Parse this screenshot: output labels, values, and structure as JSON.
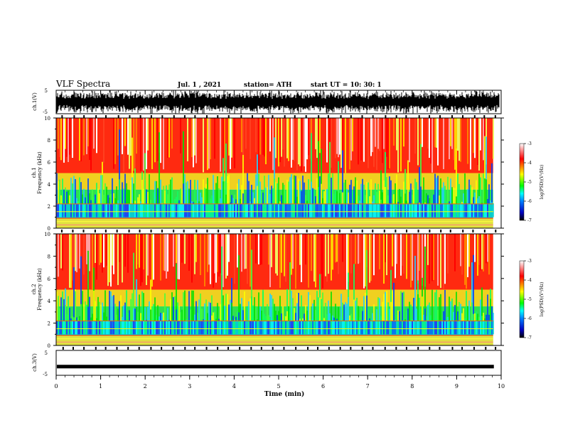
{
  "header": {
    "title": "VLF Spectra",
    "date": "Jul. 1 , 2021",
    "station": "station= ATH",
    "start": "start UT = 10: 30: 1"
  },
  "colors": {
    "spectrogram_low": "#1030c0",
    "spectrogram_mid": "#10e060",
    "spectrogram_high": "#ff2010",
    "colorbar_stops": [
      "#000000",
      "#0000c0",
      "#0080ff",
      "#00ffff",
      "#00ff00",
      "#ffff00",
      "#ff8000",
      "#ff0000",
      "#ffffff"
    ]
  },
  "chart_data": [
    {
      "type": "line",
      "id": "ch1-waveform",
      "ylabel": "ch.1(V)",
      "yticks": [
        "5",
        "-5"
      ],
      "ylim": [
        -5,
        5
      ],
      "xlim": [
        0,
        10
      ]
    },
    {
      "type": "heatmap",
      "id": "ch1-spectrogram",
      "ylabel": "ch.1\nFrequency (kHz)",
      "ylabel_line1": "ch.1",
      "ylabel_line2": "Frequency (kHz)",
      "yticks": [
        "0",
        "2",
        "4",
        "6",
        "8",
        "10"
      ],
      "ylim": [
        0,
        10
      ],
      "xlim": [
        0,
        10
      ],
      "colorbar": {
        "label": "log(PSD)(V²/Hz)",
        "ticks": [
          "-3",
          "-4",
          "-5",
          "-6",
          "-7"
        ],
        "range": [
          -7,
          -3
        ]
      }
    },
    {
      "type": "heatmap",
      "id": "ch2-spectrogram",
      "ylabel_line1": "ch.2",
      "ylabel_line2": "Frequency (kHz)",
      "yticks": [
        "0",
        "2",
        "4",
        "6",
        "8",
        "10"
      ],
      "ylim": [
        0,
        10
      ],
      "xlim": [
        0,
        10
      ],
      "colorbar": {
        "label": "log(PSD)(V²/Hz)",
        "ticks": [
          "-3",
          "-4",
          "-5",
          "-6",
          "-7"
        ],
        "range": [
          -7,
          -3
        ]
      }
    },
    {
      "type": "line",
      "id": "ch3-waveform",
      "ylabel": "ch.3(V)",
      "yticks": [
        "5",
        "-5"
      ],
      "ylim": [
        -5,
        5
      ],
      "xlim": [
        0,
        10
      ],
      "level": -1.5
    }
  ],
  "xaxis": {
    "label": "Time (min)",
    "ticks": [
      "0",
      "1",
      "2",
      "3",
      "4",
      "5",
      "6",
      "7",
      "8",
      "9",
      "10"
    ],
    "range": [
      0,
      10
    ]
  }
}
